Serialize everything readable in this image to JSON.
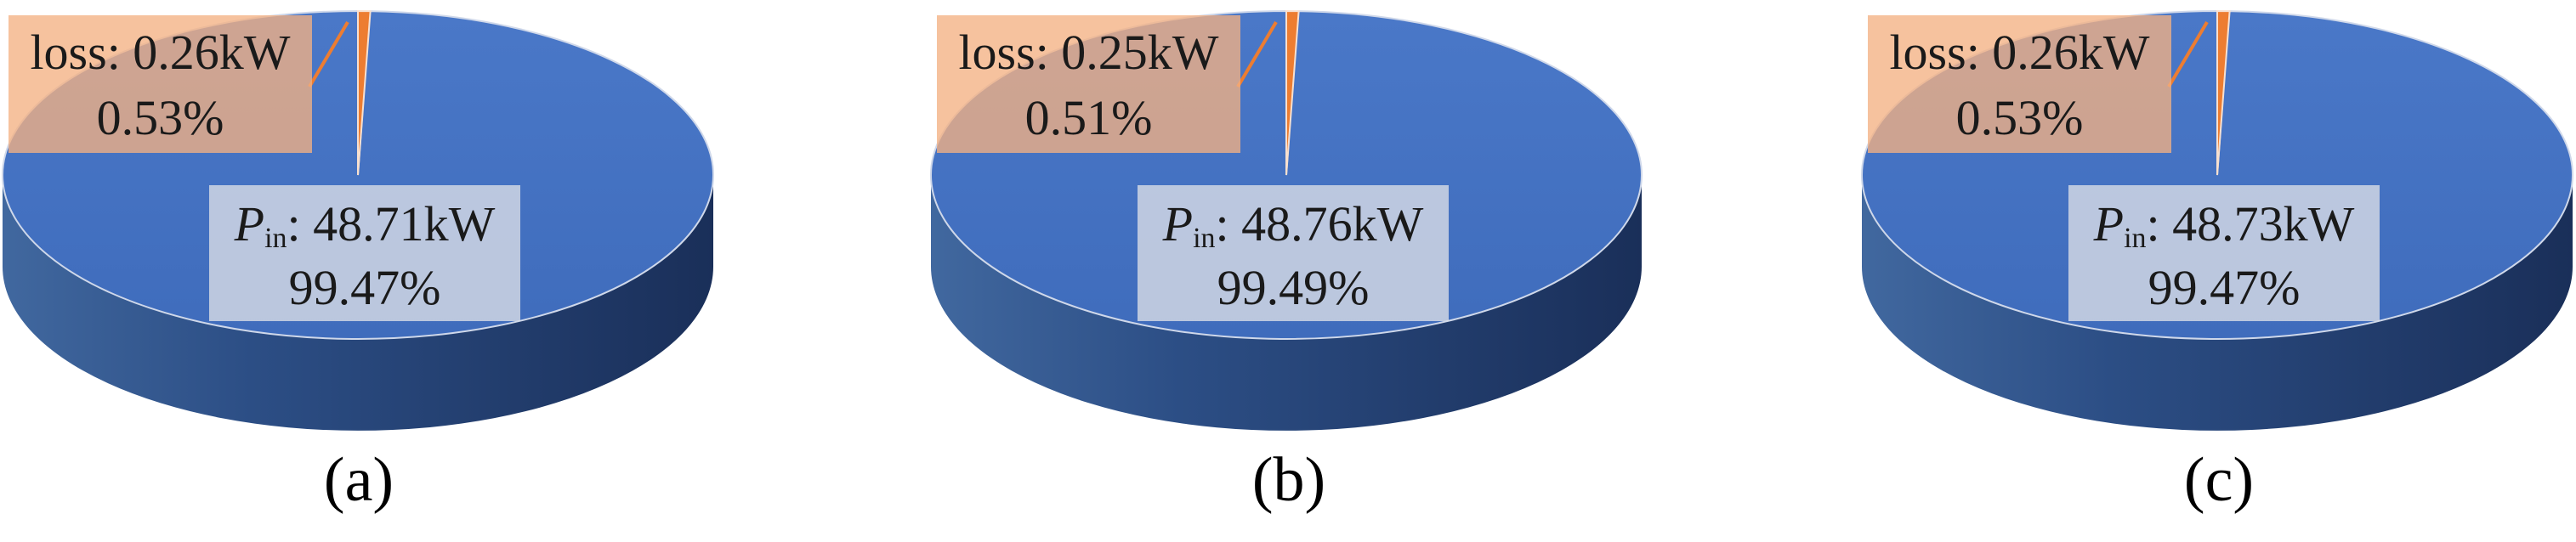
{
  "chart_data": [
    {
      "type": "pie",
      "caption": "(a)",
      "slices": [
        {
          "label": "P",
          "label_sub": "in",
          "value_text": "48.71kW",
          "percent_text": "99.47%",
          "value": 48.71,
          "percent": 99.47,
          "color": "#4472c4"
        },
        {
          "label": "loss",
          "value_text": "0.26kW",
          "percent_text": "0.53%",
          "value": 0.26,
          "percent": 0.53,
          "color": "#ed7d31"
        }
      ]
    },
    {
      "type": "pie",
      "caption": "(b)",
      "slices": [
        {
          "label": "P",
          "label_sub": "in",
          "value_text": "48.76kW",
          "percent_text": "99.49%",
          "value": 48.76,
          "percent": 99.49,
          "color": "#4472c4"
        },
        {
          "label": "loss",
          "value_text": "0.25kW",
          "percent_text": "0.51%",
          "value": 0.25,
          "percent": 0.51,
          "color": "#ed7d31"
        }
      ]
    },
    {
      "type": "pie",
      "caption": "(c)",
      "slices": [
        {
          "label": "P",
          "label_sub": "in",
          "value_text": "48.73kW",
          "percent_text": "99.47%",
          "value": 48.73,
          "percent": 99.47,
          "color": "#4472c4"
        },
        {
          "label": "loss",
          "value_text": "0.26kW",
          "percent_text": "0.53%",
          "value": 0.26,
          "percent": 0.53,
          "color": "#ed7d31"
        }
      ]
    }
  ]
}
